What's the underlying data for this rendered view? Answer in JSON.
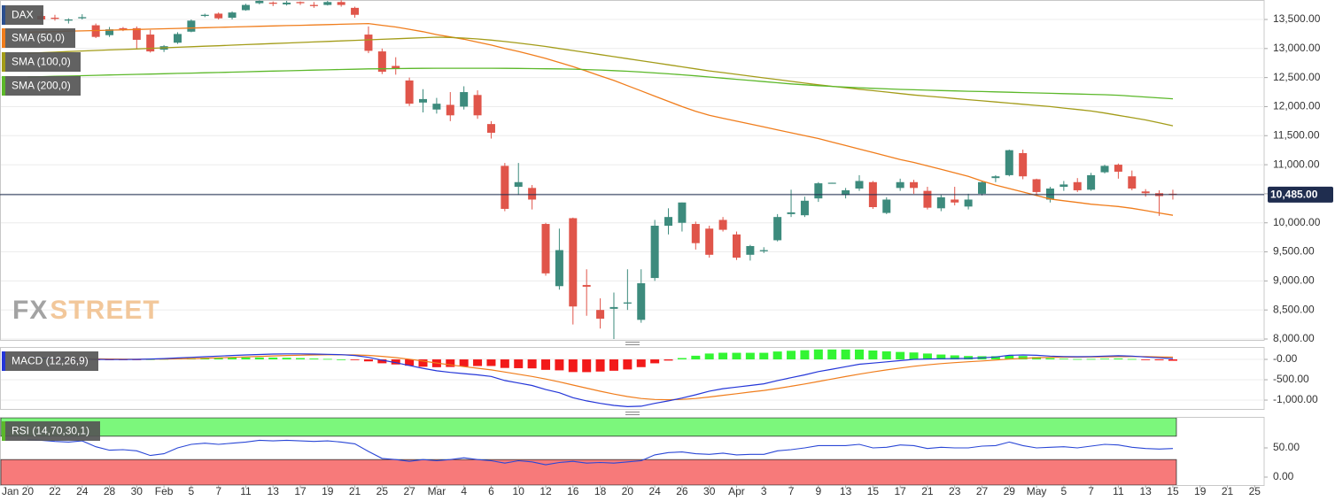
{
  "watermark": [
    "FX",
    "STREET"
  ],
  "chart_data": [
    {
      "type": "candlestick",
      "title": "DAX",
      "ylim": [
        8000,
        13835
      ],
      "yticks": [
        {
          "value": 8000,
          "label": "8,000.00"
        },
        {
          "value": 8500,
          "label": "8,500.00"
        },
        {
          "value": 9000,
          "label": "9,000.00"
        },
        {
          "value": 9500,
          "label": "9,500.00"
        },
        {
          "value": 10000,
          "label": "10,000.00"
        },
        {
          "value": 10500,
          "label": "10,500.00"
        },
        {
          "value": 11000,
          "label": "11,000.00"
        },
        {
          "value": 11500,
          "label": "11,500.00"
        },
        {
          "value": 12000,
          "label": "12,000.00"
        },
        {
          "value": 12500,
          "label": "12,500.00"
        },
        {
          "value": 13000,
          "label": "13,000.00"
        },
        {
          "value": 13500,
          "label": "13,500.00"
        }
      ],
      "grid": true,
      "up_color": "#3d8b7d",
      "down_color": "#e0554a",
      "last_price": {
        "value": 10485,
        "label": "10,485.00",
        "color": "#1f2d4f"
      },
      "open": [
        13520,
        13560,
        13530,
        13480,
        13520,
        13400,
        13230,
        13350,
        13350,
        13240,
        12980,
        13100,
        13290,
        13560,
        13600,
        13530,
        13660,
        13780,
        13790,
        13760,
        13800,
        13750,
        13750,
        13800,
        13700,
        13240,
        12950,
        12700,
        12450,
        12070,
        11950,
        12030,
        12000,
        12200,
        11700,
        10980,
        10620,
        10600,
        9980,
        8910,
        10080,
        8930,
        8500,
        8520,
        8610,
        8330,
        9050,
        9950,
        10000,
        9980,
        9900,
        10050,
        9800,
        9450,
        9510,
        9700,
        10150,
        10130,
        10420,
        10680,
        10480,
        10590,
        10700,
        10170,
        10600,
        10700,
        10550,
        10250,
        10400,
        10280,
        10500,
        10770,
        10820,
        11200,
        10750,
        10400,
        10620,
        10700,
        10570,
        10870,
        11000,
        10800,
        10540,
        10510,
        10500,
        null,
        null,
        null,
        null,
        null,
        null
      ],
      "high": [
        13600,
        13640,
        13580,
        13520,
        13590,
        13430,
        13370,
        13370,
        13380,
        13320,
        13060,
        13280,
        13500,
        13600,
        13620,
        13640,
        13770,
        13830,
        13810,
        13820,
        13810,
        13800,
        13820,
        13830,
        13720,
        13380,
        13000,
        12850,
        12500,
        12300,
        12150,
        12250,
        12350,
        12280,
        11750,
        11030,
        11030,
        10650,
        10000,
        9900,
        10090,
        9200,
        8700,
        8800,
        9200,
        9200,
        10050,
        10250,
        10350,
        10020,
        9950,
        10100,
        9850,
        9620,
        9580,
        10150,
        10570,
        10450,
        10700,
        10690,
        10600,
        10820,
        10720,
        10440,
        10760,
        10740,
        10620,
        10480,
        10620,
        10500,
        10720,
        10820,
        11260,
        11260,
        10760,
        10620,
        10720,
        10770,
        10860,
        11000,
        11020,
        10900,
        10580,
        10560,
        10570,
        null,
        null,
        null,
        null,
        null,
        null
      ],
      "low": [
        13500,
        13480,
        13480,
        13430,
        13500,
        13180,
        13200,
        13300,
        13000,
        12930,
        12940,
        13080,
        13280,
        13540,
        13500,
        13500,
        13650,
        13760,
        13730,
        13740,
        13750,
        13700,
        13740,
        13720,
        13530,
        12920,
        12560,
        12550,
        12010,
        11900,
        11880,
        11750,
        11950,
        11790,
        11450,
        10200,
        10480,
        10230,
        9090,
        8850,
        8250,
        8400,
        8180,
        8000,
        8500,
        8280,
        9000,
        9800,
        9850,
        9540,
        9400,
        9850,
        9360,
        9350,
        9480,
        9680,
        10100,
        10100,
        10360,
        10680,
        10420,
        10550,
        10240,
        10150,
        10550,
        10500,
        10230,
        10200,
        10300,
        10230,
        10470,
        10700,
        10800,
        10750,
        10460,
        10350,
        10550,
        10530,
        10550,
        10850,
        10760,
        10560,
        10450,
        10120,
        10400,
        null,
        null,
        null,
        null,
        null,
        null
      ],
      "close": [
        13550,
        13500,
        13510,
        13500,
        13540,
        13200,
        13330,
        13340,
        13150,
        12950,
        13040,
        13250,
        13480,
        13580,
        13520,
        13620,
        13750,
        13820,
        13770,
        13790,
        13780,
        13730,
        13800,
        13750,
        13580,
        12960,
        12600,
        12650,
        12050,
        12130,
        12050,
        11850,
        12250,
        11850,
        11550,
        10240,
        10700,
        10400,
        9130,
        9530,
        8560,
        8900,
        8350,
        8550,
        8630,
        8960,
        9950,
        10100,
        10350,
        9650,
        9450,
        9880,
        9400,
        9600,
        9530,
        10100,
        10180,
        10380,
        10680,
        10690,
        10560,
        10720,
        10270,
        10400,
        10700,
        10600,
        10260,
        10440,
        10350,
        10400,
        10700,
        10800,
        11250,
        10800,
        10530,
        10590,
        10660,
        10560,
        10820,
        10980,
        10880,
        10590,
        10510,
        10460,
        10485,
        null,
        null,
        null,
        null,
        null,
        null
      ],
      "series": [
        {
          "name": "SMA (50,0)",
          "color": "#f07d1c",
          "values": [
            13280,
            13286,
            13292,
            13298,
            13304,
            13310,
            13316,
            13322,
            13328,
            13334,
            13340,
            13346,
            13352,
            13358,
            13364,
            13370,
            13376,
            13382,
            13388,
            13394,
            13400,
            13406,
            13412,
            13418,
            13424,
            13430,
            13400,
            13370,
            13330,
            13290,
            13240,
            13200,
            13160,
            13110,
            13060,
            13000,
            12950,
            12890,
            12830,
            12760,
            12690,
            12610,
            12530,
            12450,
            12360,
            12270,
            12180,
            12090,
            12000,
            11920,
            11850,
            11800,
            11750,
            11700,
            11650,
            11600,
            11550,
            11500,
            11450,
            11390,
            11330,
            11270,
            11210,
            11150,
            11090,
            11040,
            10980,
            10920,
            10860,
            10800,
            10720,
            10650,
            10590,
            10530,
            10470,
            10410,
            10380,
            10350,
            10320,
            10300,
            10280,
            10250,
            10210,
            10170,
            10130,
            null,
            null,
            null,
            null,
            null,
            null
          ]
        },
        {
          "name": "SMA (100,0)",
          "color": "#a39c19",
          "values": [
            12920,
            12929,
            12938,
            12948,
            12957,
            12966,
            12975,
            12984,
            12993,
            13003,
            13012,
            13021,
            13030,
            13039,
            13048,
            13058,
            13067,
            13076,
            13085,
            13094,
            13103,
            13113,
            13122,
            13131,
            13140,
            13149,
            13158,
            13168,
            13177,
            13186,
            13195,
            13190,
            13180,
            13165,
            13145,
            13120,
            13095,
            13065,
            13035,
            13000,
            12965,
            12930,
            12895,
            12860,
            12825,
            12790,
            12755,
            12720,
            12685,
            12650,
            12615,
            12585,
            12555,
            12525,
            12495,
            12465,
            12435,
            12405,
            12375,
            12350,
            12325,
            12300,
            12275,
            12250,
            12225,
            12200,
            12180,
            12160,
            12140,
            12120,
            12100,
            12080,
            12060,
            12040,
            12020,
            12000,
            11975,
            11950,
            11925,
            11890,
            11850,
            11810,
            11770,
            11720,
            11670,
            null,
            null,
            null,
            null,
            null,
            null
          ]
        },
        {
          "name": "SMA (200,0)",
          "color": "#5cb82a",
          "values": [
            12510,
            12516,
            12521,
            12527,
            12532,
            12538,
            12544,
            12549,
            12555,
            12560,
            12566,
            12572,
            12577,
            12583,
            12588,
            12594,
            12600,
            12605,
            12611,
            12616,
            12622,
            12628,
            12633,
            12639,
            12644,
            12650,
            12652,
            12655,
            12657,
            12659,
            12660,
            12660,
            12660,
            12660,
            12660,
            12659,
            12657,
            12655,
            12652,
            12650,
            12645,
            12638,
            12630,
            12620,
            12608,
            12595,
            12580,
            12565,
            12548,
            12530,
            12510,
            12490,
            12470,
            12450,
            12430,
            12410,
            12390,
            12375,
            12360,
            12348,
            12336,
            12325,
            12315,
            12305,
            12297,
            12290,
            12283,
            12277,
            12271,
            12265,
            12259,
            12253,
            12247,
            12241,
            12235,
            12229,
            12223,
            12217,
            12211,
            12205,
            12195,
            12180,
            12165,
            12150,
            12135,
            null,
            null,
            null,
            null,
            null,
            null
          ]
        }
      ]
    },
    {
      "type": "macd",
      "title": "MACD (12,26,9)",
      "color": "#2436d8",
      "ylim": [
        -1217,
        283
      ],
      "yticks": [
        {
          "value": 0,
          "label": "-0.00"
        },
        {
          "value": -500,
          "label": "-500.00"
        },
        {
          "value": -1000,
          "label": "-1,000.00"
        }
      ],
      "grid": true,
      "macd": {
        "color": "#2436d8",
        "values": [
          40,
          30,
          20,
          10,
          5,
          0,
          -5,
          -5,
          0,
          10,
          20,
          35,
          50,
          65,
          80,
          95,
          110,
          120,
          130,
          135,
          135,
          130,
          125,
          115,
          95,
          50,
          -20,
          -80,
          -150,
          -220,
          -280,
          -320,
          -350,
          -380,
          -420,
          -520,
          -580,
          -640,
          -740,
          -820,
          -940,
          -1020,
          -1080,
          -1130,
          -1160,
          -1150,
          -1080,
          -1020,
          -950,
          -870,
          -780,
          -720,
          -680,
          -640,
          -600,
          -520,
          -450,
          -380,
          -300,
          -240,
          -180,
          -120,
          -90,
          -60,
          -30,
          0,
          10,
          15,
          20,
          25,
          40,
          60,
          100,
          110,
          100,
          80,
          70,
          65,
          70,
          80,
          90,
          80,
          60,
          40,
          20,
          null,
          null,
          null,
          null,
          null,
          null
        ]
      },
      "signal": {
        "color": "#f07d1c",
        "values": [
          20,
          22,
          22,
          20,
          17,
          14,
          10,
          7,
          5,
          6,
          9,
          14,
          21,
          30,
          40,
          51,
          62,
          74,
          85,
          95,
          103,
          109,
          113,
          114,
          110,
          98,
          75,
          44,
          5,
          -40,
          -88,
          -134,
          -177,
          -217,
          -258,
          -310,
          -364,
          -419,
          -483,
          -551,
          -629,
          -707,
          -782,
          -851,
          -913,
          -960,
          -984,
          -991,
          -983,
          -960,
          -924,
          -883,
          -842,
          -802,
          -762,
          -714,
          -661,
          -605,
          -544,
          -483,
          -422,
          -362,
          -308,
          -258,
          -213,
          -170,
          -134,
          -104,
          -79,
          -58,
          -38,
          -18,
          6,
          27,
          42,
          50,
          54,
          56,
          59,
          63,
          68,
          70,
          68,
          62,
          54,
          null,
          null,
          null,
          null,
          null,
          null
        ]
      },
      "histogram": {
        "up_color": "#33f533",
        "down_color": "#f21a1a",
        "values": [
          20,
          8,
          -2,
          -10,
          -12,
          -14,
          -15,
          -12,
          -5,
          4,
          11,
          21,
          29,
          35,
          40,
          44,
          48,
          46,
          45,
          40,
          32,
          21,
          12,
          1,
          -15,
          -48,
          -95,
          -124,
          -155,
          -180,
          -192,
          -186,
          -173,
          -163,
          -162,
          -210,
          -216,
          -221,
          -257,
          -269,
          -311,
          -313,
          -298,
          -279,
          -247,
          -190,
          -96,
          -29,
          33,
          90,
          144,
          163,
          162,
          162,
          162,
          194,
          211,
          225,
          244,
          243,
          242,
          242,
          218,
          198,
          183,
          170,
          144,
          119,
          99,
          83,
          78,
          78,
          94,
          83,
          58,
          30,
          16,
          9,
          11,
          17,
          22,
          10,
          -8,
          -22,
          -34,
          null,
          null,
          null,
          null,
          null,
          null
        ]
      }
    },
    {
      "type": "rsi",
      "title": "RSI (14,70,30,1)",
      "color": "#2a47d6",
      "ylim": [
        0,
        100
      ],
      "yticks": [
        {
          "value": 50,
          "label": "50.00"
        },
        {
          "value": 0,
          "label": "0.00"
        }
      ],
      "upper": 70,
      "lower": 30,
      "upper_color": "#7cf77c",
      "lower_color": "#f77a7a",
      "values": [
        64,
        63,
        61,
        60,
        62,
        52,
        46,
        47,
        45,
        37,
        40,
        50,
        56,
        58,
        56,
        58,
        60,
        63,
        62,
        63,
        62,
        61,
        62,
        60,
        57,
        44,
        32,
        30,
        27,
        30,
        28,
        30,
        33,
        30,
        28,
        24,
        28,
        26,
        21,
        25,
        27,
        24,
        25,
        24,
        26,
        28,
        38,
        42,
        43,
        40,
        39,
        41,
        38,
        39,
        39,
        45,
        47,
        50,
        54,
        54,
        54,
        56,
        50,
        51,
        55,
        54,
        49,
        51,
        50,
        50,
        53,
        54,
        60,
        54,
        50,
        51,
        52,
        50,
        53,
        56,
        55,
        51,
        49,
        48,
        49,
        null,
        null,
        null,
        null,
        null,
        null
      ],
      "categories": [
        "Jan 20",
        null,
        "22",
        null,
        "24",
        null,
        "28",
        null,
        "30",
        null,
        "Feb",
        null,
        "5",
        null,
        "7",
        null,
        "11",
        null,
        "13",
        null,
        "17",
        null,
        "19",
        null,
        "21",
        null,
        "25",
        null,
        "27",
        null,
        "Mar",
        null,
        "4",
        null,
        "6",
        null,
        "10",
        null,
        "12",
        null,
        "16",
        null,
        "18",
        null,
        "20",
        null,
        "24",
        null,
        "26",
        null,
        "30",
        null,
        "Apr",
        null,
        "3",
        null,
        "7",
        null,
        "9",
        null,
        "13",
        null,
        "15",
        null,
        "17",
        null,
        "21",
        null,
        "23",
        null,
        "27",
        null,
        "29",
        null,
        "May",
        null,
        "5",
        null,
        "7",
        null,
        "11",
        null,
        "13",
        null,
        "15",
        null,
        "19",
        null,
        "21",
        null,
        "25"
      ]
    }
  ]
}
